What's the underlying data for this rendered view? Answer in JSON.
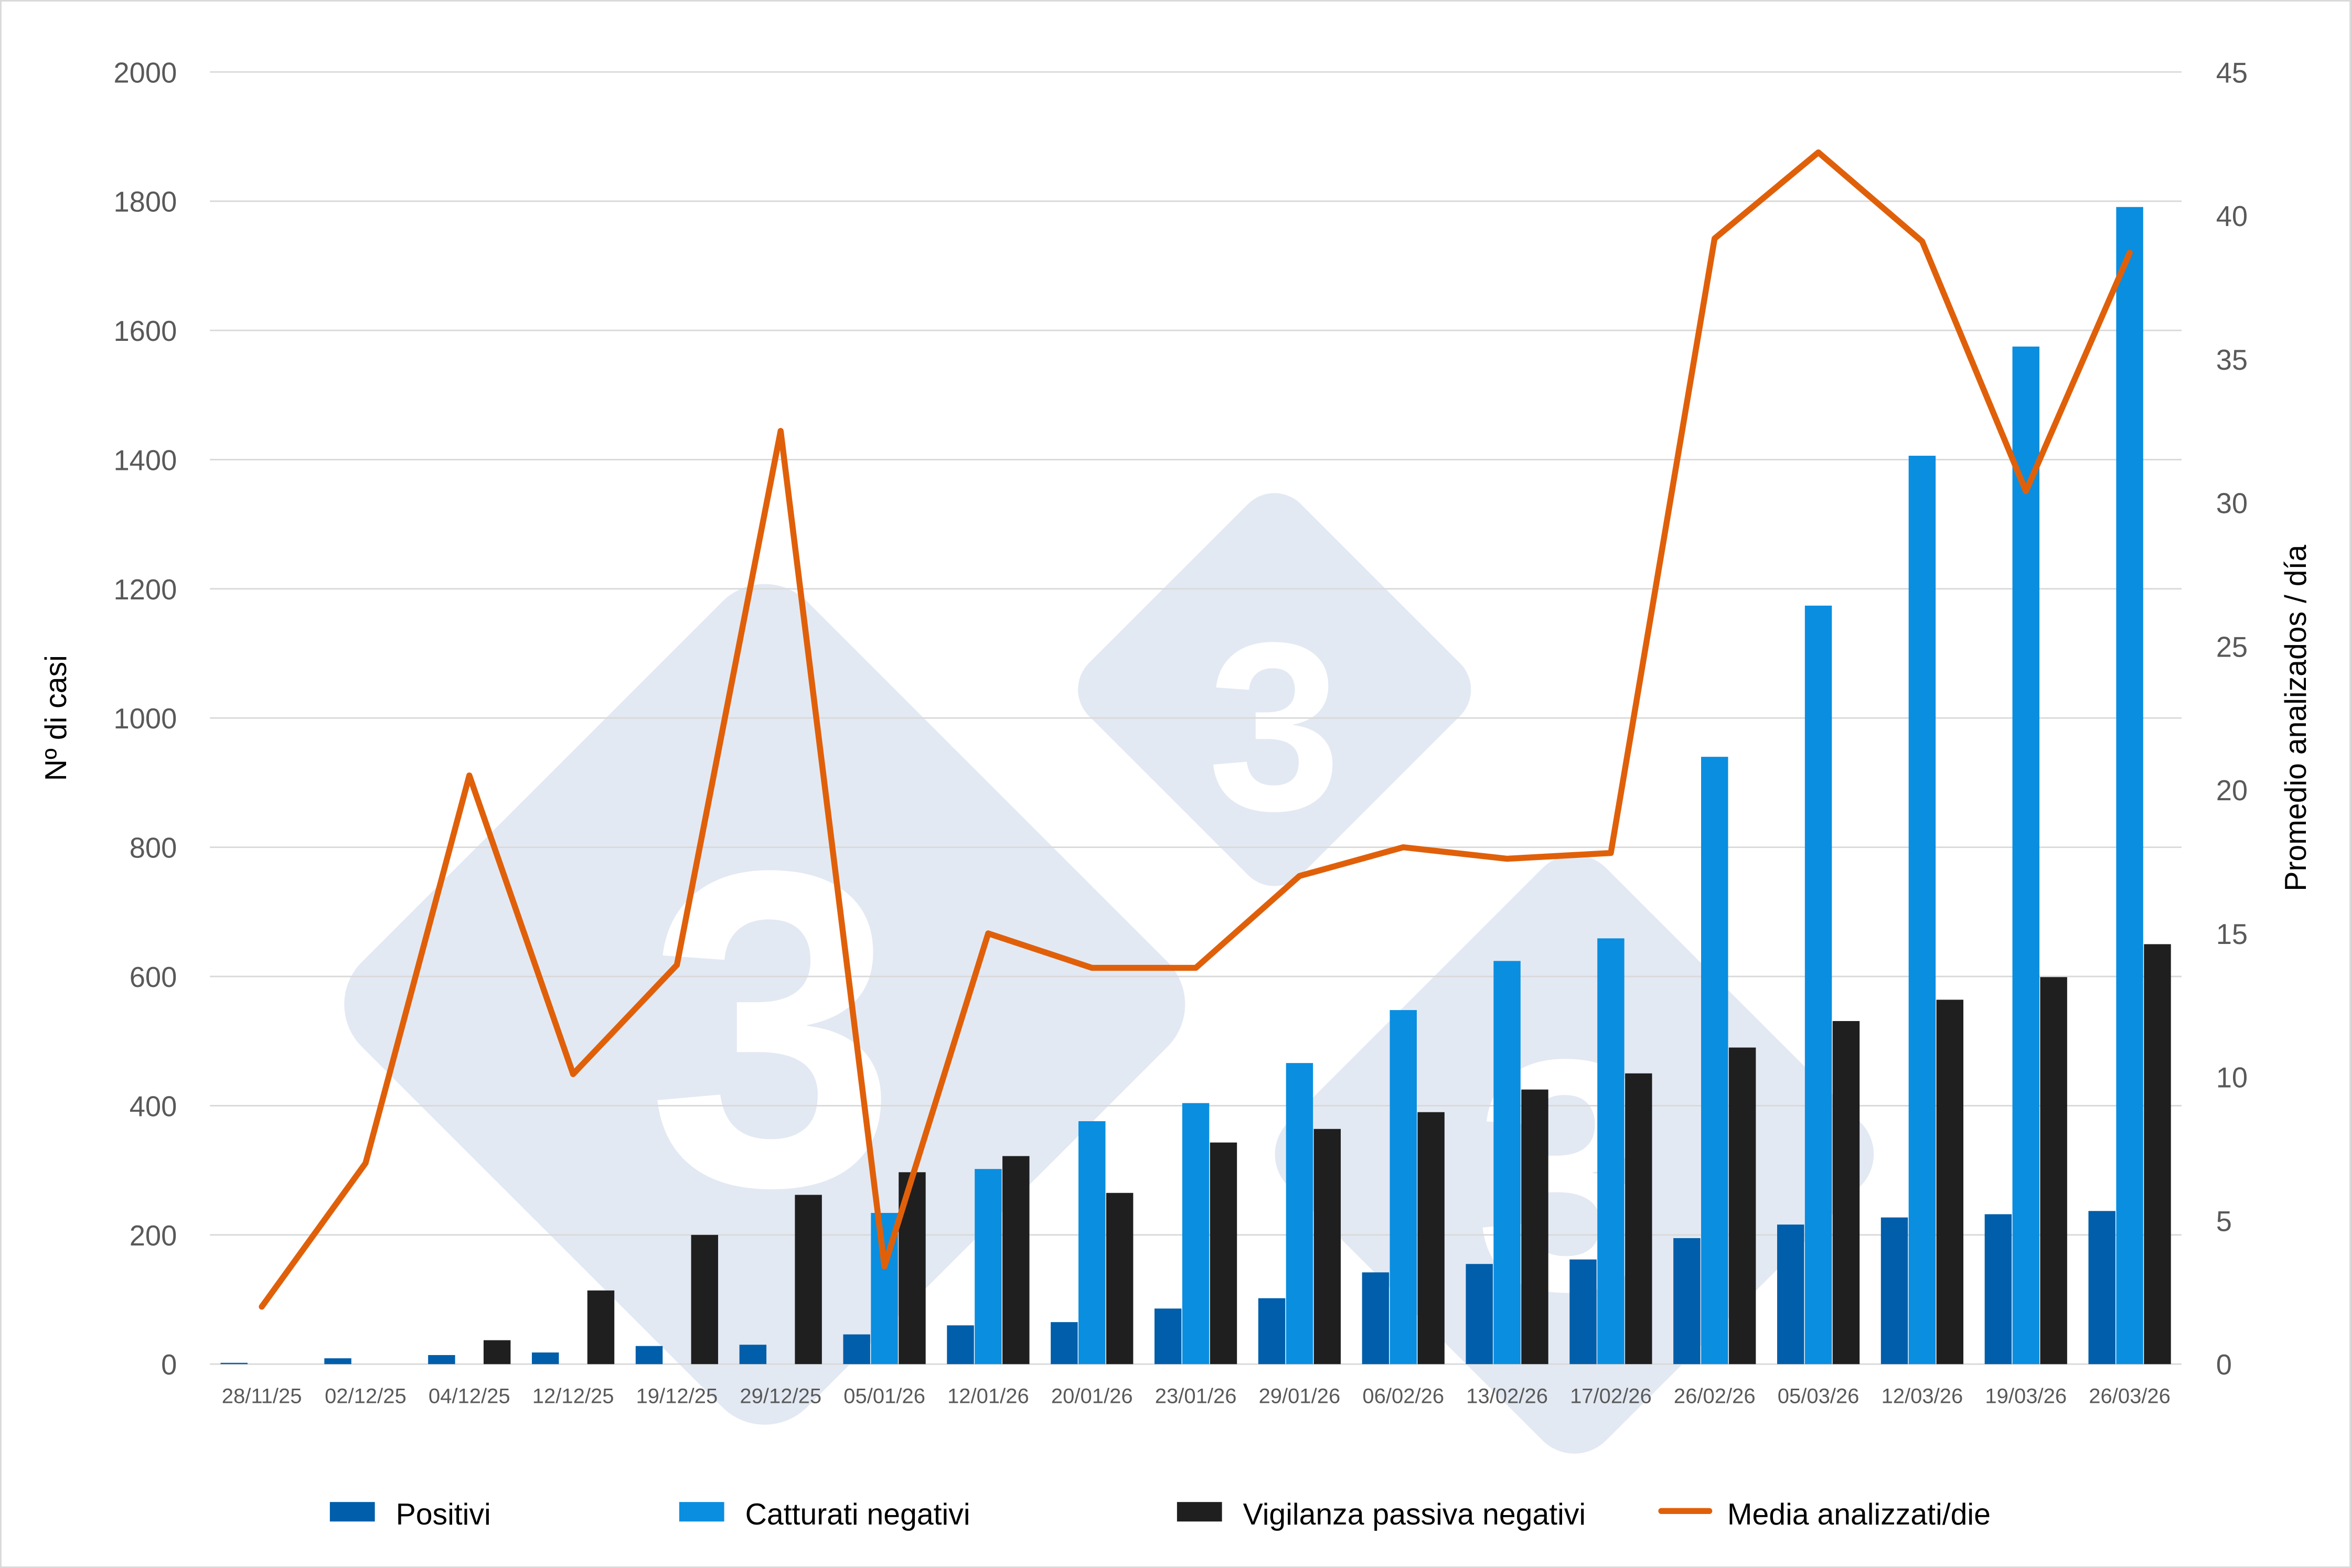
{
  "chart_data": {
    "type": "bar+line",
    "title": "",
    "categories": [
      "28/11/25",
      "02/12/25",
      "04/12/25",
      "12/12/25",
      "19/12/25",
      "29/12/25",
      "05/01/26",
      "12/01/26",
      "20/01/26",
      "23/01/26",
      "29/01/26",
      "06/02/26",
      "13/02/26",
      "17/02/26",
      "26/02/26",
      "05/03/26",
      "12/03/26",
      "19/03/26",
      "26/03/26"
    ],
    "ylabel": "Nº di casi",
    "y2label": "Promedio analizados / día",
    "ylim": [
      0,
      2000
    ],
    "yticks": [
      0,
      200,
      400,
      600,
      800,
      1000,
      1200,
      1400,
      1600,
      1800,
      2000
    ],
    "y2lim": [
      0,
      45
    ],
    "y2ticks": [
      0,
      5,
      10,
      15,
      20,
      25,
      30,
      35,
      40,
      45
    ],
    "grid": true,
    "legend_position": "bottom",
    "series": [
      {
        "name": "Positivi",
        "type": "bar",
        "axis": "left",
        "color": "#005eaa",
        "values": [
          2,
          9,
          14,
          18,
          28,
          30,
          46,
          60,
          65,
          86,
          102,
          142,
          155,
          162,
          195,
          216,
          227,
          232,
          237
        ]
      },
      {
        "name": "Catturati negativi",
        "type": "bar",
        "axis": "left",
        "color": "#0a8ee0",
        "values": [
          0,
          0,
          0,
          0,
          0,
          0,
          234,
          302,
          376,
          404,
          466,
          548,
          624,
          659,
          940,
          1174,
          1406,
          1575,
          1791
        ]
      },
      {
        "name": "Vigilanza passiva negativi",
        "type": "bar",
        "axis": "left",
        "color": "#1f1f1f",
        "values": [
          0,
          0,
          37,
          114,
          200,
          262,
          297,
          322,
          265,
          343,
          364,
          390,
          425,
          450,
          490,
          531,
          564,
          599,
          650
        ]
      },
      {
        "name": "Media analizzati/die",
        "type": "line",
        "axis": "right",
        "color": "#e0600a",
        "values": [
          2.0,
          7.0,
          20.5,
          10.1,
          13.9,
          32.5,
          3.4,
          15.0,
          13.8,
          13.8,
          17.0,
          18.0,
          17.6,
          17.8,
          39.2,
          42.2,
          39.1,
          30.4,
          38.7
        ]
      }
    ]
  },
  "watermark": "3tres3"
}
